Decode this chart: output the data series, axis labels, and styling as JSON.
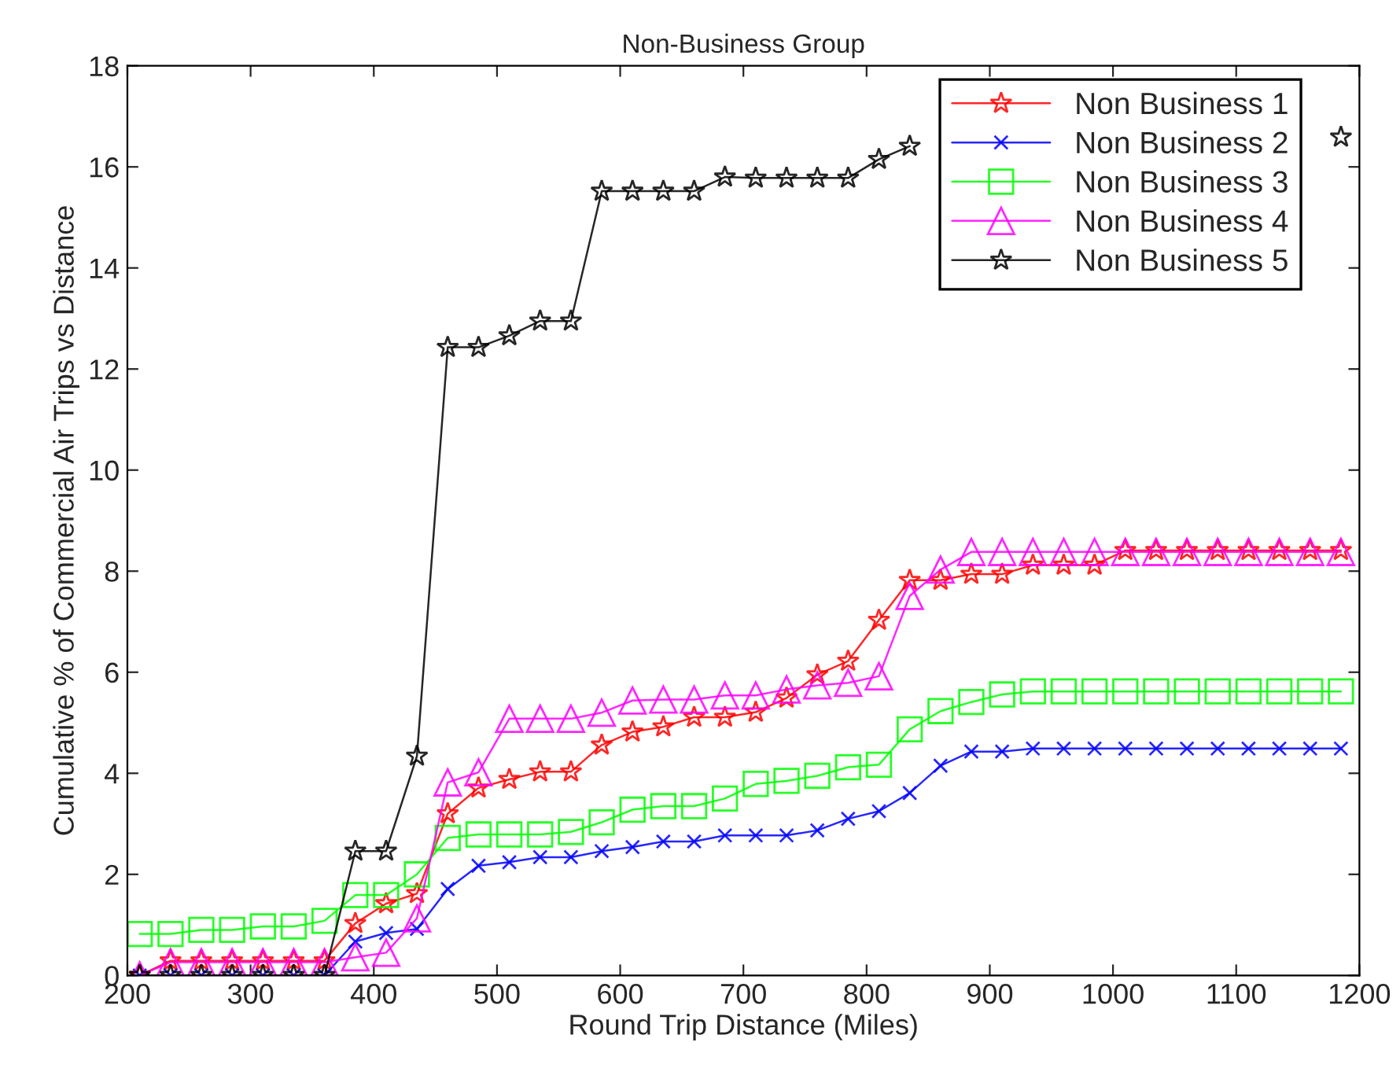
{
  "chart_data": {
    "type": "line",
    "title": "Non-Business Group",
    "xlabel": "Round Trip Distance (Miles)",
    "ylabel": "Cumulative % of Commercial Air Trips vs Distance",
    "x": [
      210,
      235,
      260,
      285,
      310,
      335,
      360,
      385,
      410,
      435,
      460,
      485,
      510,
      535,
      560,
      585,
      610,
      635,
      660,
      685,
      710,
      735,
      760,
      785,
      810,
      835,
      860,
      885,
      910,
      935,
      960,
      985,
      1010,
      1035,
      1060,
      1085,
      1110,
      1135,
      1160,
      1185
    ],
    "series": [
      {
        "name": "Non Business 1",
        "color": "#ff0000",
        "marker": "star",
        "values": [
          0,
          0.29,
          0.29,
          0.29,
          0.29,
          0.29,
          0.29,
          1.03,
          1.42,
          1.62,
          3.2,
          3.71,
          3.88,
          4.03,
          4.03,
          4.56,
          4.82,
          4.92,
          5.11,
          5.11,
          5.21,
          5.49,
          5.95,
          6.22,
          7.03,
          7.82,
          7.82,
          7.94,
          7.94,
          8.12,
          8.12,
          8.12,
          8.41,
          8.41,
          8.41,
          8.41,
          8.41,
          8.41,
          8.41,
          8.41
        ]
      },
      {
        "name": "Non Business 2",
        "color": "#0000ff",
        "marker": "cross",
        "values": [
          0,
          0,
          0,
          0,
          0,
          0,
          0,
          0.67,
          0.84,
          0.92,
          1.71,
          2.17,
          2.24,
          2.34,
          2.34,
          2.46,
          2.54,
          2.65,
          2.65,
          2.77,
          2.77,
          2.77,
          2.87,
          3.1,
          3.25,
          3.61,
          4.15,
          4.43,
          4.43,
          4.49,
          4.49,
          4.49,
          4.49,
          4.49,
          4.49,
          4.49,
          4.49,
          4.49,
          4.49,
          4.49
        ]
      },
      {
        "name": "Non Business 3",
        "color": "#00ff00",
        "marker": "square",
        "values": [
          0.82,
          0.82,
          0.9,
          0.9,
          0.97,
          0.97,
          1.08,
          1.59,
          1.59,
          2.0,
          2.72,
          2.79,
          2.79,
          2.79,
          2.84,
          3.03,
          3.28,
          3.35,
          3.35,
          3.5,
          3.79,
          3.85,
          3.95,
          4.12,
          4.17,
          4.87,
          5.23,
          5.41,
          5.56,
          5.62,
          5.62,
          5.62,
          5.62,
          5.62,
          5.62,
          5.62,
          5.62,
          5.62,
          5.62,
          5.62
        ]
      },
      {
        "name": "Non Business 4",
        "color": "#ff00ff",
        "marker": "triangle",
        "values": [
          0,
          0.26,
          0.26,
          0.26,
          0.26,
          0.26,
          0.26,
          0.36,
          0.45,
          1.13,
          3.82,
          4.02,
          5.08,
          5.08,
          5.08,
          5.2,
          5.44,
          5.46,
          5.46,
          5.54,
          5.54,
          5.66,
          5.74,
          5.79,
          5.92,
          7.51,
          8.03,
          8.38,
          8.38,
          8.38,
          8.38,
          8.38,
          8.38,
          8.38,
          8.38,
          8.38,
          8.38,
          8.38,
          8.38,
          8.38
        ]
      },
      {
        "name": "Non Business 5",
        "color": "#000000",
        "marker": "star",
        "values": [
          0,
          0,
          0,
          0,
          0,
          0,
          0,
          2.46,
          2.46,
          4.34,
          12.43,
          12.43,
          12.66,
          12.95,
          12.95,
          15.52,
          15.52,
          15.52,
          15.52,
          15.8,
          15.78,
          15.78,
          15.78,
          15.78,
          16.15,
          16.41,
          null,
          null,
          null,
          null,
          null,
          null,
          null,
          null,
          null,
          null,
          null,
          null,
          null,
          16.59
        ]
      }
    ],
    "xlim": [
      200,
      1200
    ],
    "xticks": [
      200,
      300,
      400,
      500,
      600,
      700,
      800,
      900,
      1000,
      1100,
      1200
    ],
    "ylim": [
      0,
      18
    ],
    "yticks": [
      0,
      2,
      4,
      6,
      8,
      10,
      12,
      14,
      16,
      18
    ],
    "grid": false,
    "legend": "top right",
    "line_style": "solid"
  }
}
